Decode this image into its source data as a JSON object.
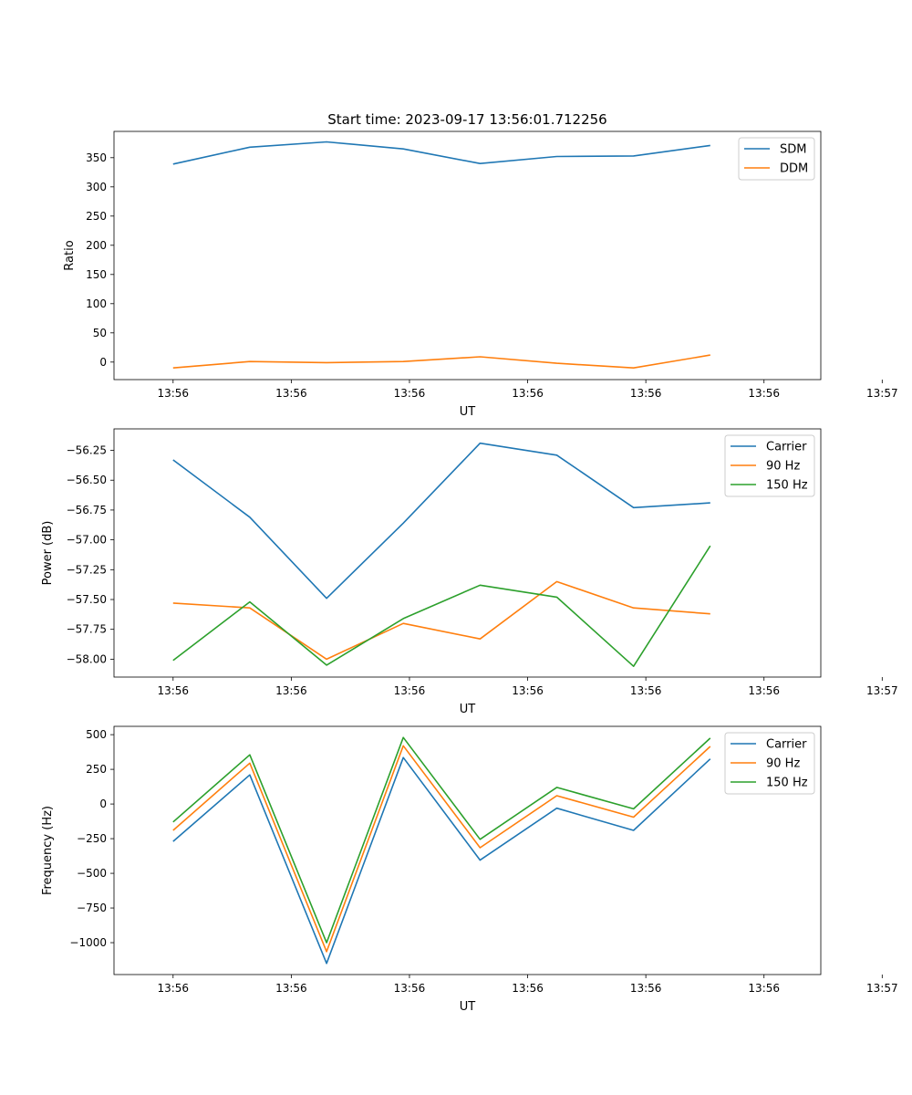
{
  "colors": {
    "c0": "#1f77b4",
    "c1": "#ff7f0e",
    "c2": "#2ca02c"
  },
  "chart_data": [
    {
      "type": "line",
      "title": "Start time: 2023-09-17 13:56:01.712256",
      "xlabel": "UT",
      "ylabel": "Ratio",
      "xlim": [
        -0.77,
        8.44
      ],
      "x": [
        0,
        1,
        2,
        3,
        4,
        5,
        6,
        7
      ],
      "xticks": [
        0,
        1.54,
        3.08,
        4.62,
        6.16,
        7.7,
        9.24
      ],
      "xticklabels": [
        "13:56",
        "13:56",
        "13:56",
        "13:56",
        "13:56",
        "13:56",
        "13:57"
      ],
      "ylim": [
        -30,
        395
      ],
      "yticks": [
        0,
        50,
        100,
        150,
        200,
        250,
        300,
        350
      ],
      "yticklabels": [
        "0",
        "50",
        "100",
        "150",
        "200",
        "250",
        "300",
        "350"
      ],
      "legend_position": "top-right",
      "series": [
        {
          "name": "SDM",
          "color": "#1f77b4",
          "values": [
            339,
            368,
            377,
            365,
            340,
            352,
            353,
            371
          ]
        },
        {
          "name": "DDM",
          "color": "#ff7f0e",
          "values": [
            -10,
            1,
            -1,
            1,
            9,
            -2,
            -10,
            12
          ]
        }
      ]
    },
    {
      "type": "line",
      "title": "",
      "xlabel": "UT",
      "ylabel": "Power (dB)",
      "xlim": [
        -0.77,
        8.44
      ],
      "x": [
        0,
        1,
        2,
        3,
        4,
        5,
        6,
        7
      ],
      "xticks": [
        0,
        1.54,
        3.08,
        4.62,
        6.16,
        7.7,
        9.24
      ],
      "xticklabels": [
        "13:56",
        "13:56",
        "13:56",
        "13:56",
        "13:56",
        "13:56",
        "13:57"
      ],
      "ylim": [
        -58.15,
        -56.07
      ],
      "yticks": [
        -58.0,
        -57.75,
        -57.5,
        -57.25,
        -57.0,
        -56.75,
        -56.5,
        -56.25
      ],
      "yticklabels": [
        "−58.00",
        "−57.75",
        "−57.50",
        "−57.25",
        "−57.00",
        "−56.75",
        "−56.50",
        "−56.25"
      ],
      "legend_position": "top-right",
      "series": [
        {
          "name": "Carrier",
          "color": "#1f77b4",
          "values": [
            -56.33,
            -56.81,
            -57.49,
            -56.86,
            -56.19,
            -56.29,
            -56.73,
            -56.69
          ]
        },
        {
          "name": "90 Hz",
          "color": "#ff7f0e",
          "values": [
            -57.53,
            -57.57,
            -58.0,
            -57.7,
            -57.83,
            -57.35,
            -57.57,
            -57.62
          ]
        },
        {
          "name": "150 Hz",
          "color": "#2ca02c",
          "values": [
            -58.01,
            -57.52,
            -58.05,
            -57.66,
            -57.38,
            -57.48,
            -58.06,
            -57.05
          ]
        }
      ]
    },
    {
      "type": "line",
      "title": "",
      "xlabel": "UT",
      "ylabel": "Frequency (Hz)",
      "xlim": [
        -0.77,
        8.44
      ],
      "x": [
        0,
        1,
        2,
        3,
        4,
        5,
        6,
        7
      ],
      "xticks": [
        0,
        1.54,
        3.08,
        4.62,
        6.16,
        7.7,
        9.24
      ],
      "xticklabels": [
        "13:56",
        "13:56",
        "13:56",
        "13:56",
        "13:56",
        "13:56",
        "13:57"
      ],
      "ylim": [
        -1230,
        560
      ],
      "yticks": [
        -1000,
        -750,
        -500,
        -250,
        0,
        250,
        500
      ],
      "yticklabels": [
        "−1000",
        "−750",
        "−500",
        "−250",
        "0",
        "250",
        "500"
      ],
      "legend_position": "top-right",
      "series": [
        {
          "name": "Carrier",
          "color": "#1f77b4",
          "values": [
            -270,
            210,
            -1150,
            335,
            -405,
            -30,
            -190,
            325
          ]
        },
        {
          "name": "90 Hz",
          "color": "#ff7f0e",
          "values": [
            -190,
            295,
            -1065,
            420,
            -315,
            60,
            -95,
            415
          ]
        },
        {
          "name": "150 Hz",
          "color": "#2ca02c",
          "values": [
            -130,
            355,
            -1000,
            480,
            -255,
            120,
            -35,
            475
          ]
        }
      ]
    }
  ]
}
